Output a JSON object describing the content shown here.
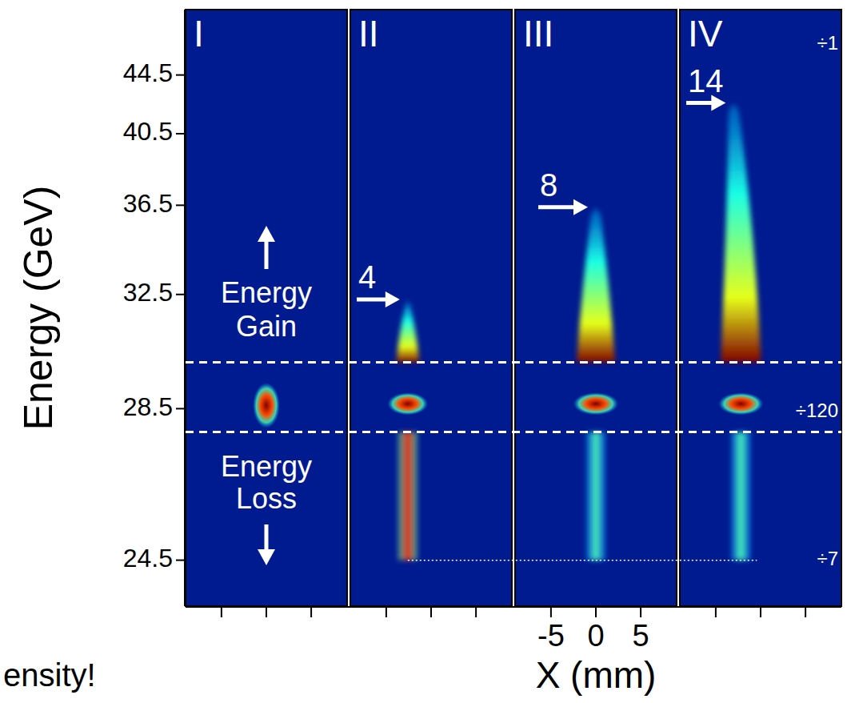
{
  "chart_data": {
    "type": "image",
    "y_label": "Energy (GeV)",
    "x_label": "X (mm)",
    "ylim": [
      23.5,
      50
    ],
    "yticks": [
      24.5,
      28.5,
      32.5,
      36.5,
      40.5,
      44.5
    ],
    "xlim": [
      -9,
      9
    ],
    "xticks": [
      -5,
      0,
      5
    ],
    "x_tick_labels_panel": "III",
    "gain_boundary": 30,
    "loss_boundary": 27.8,
    "gain_label": "Energy Gain",
    "loss_label": "Energy Loss",
    "reference_energy": 24.5,
    "scale_labels": [
      {
        "label": "÷1",
        "energy": 46.9
      },
      {
        "label": "÷120",
        "energy": 28.4
      },
      {
        "label": "÷7",
        "energy": 24.5
      }
    ],
    "panels": [
      {
        "label": "I",
        "beam": {
          "x": 0,
          "width": 3,
          "energy_low": 27.9,
          "energy_high": 29.3,
          "intensity": 1
        }
      },
      {
        "label": "II",
        "beam": {
          "x": -2.6,
          "width": 4.5,
          "energy_low": 28.3,
          "energy_high": 29.0,
          "intensity": 1
        },
        "gain": {
          "max_energy": 32.3,
          "arrow_label": "4",
          "x_bottom": -2.6,
          "x_top": -2.6,
          "width": 2.6,
          "intensity": 1
        },
        "loss": {
          "min_energy": 24.5,
          "x": -2.6,
          "width": 2.2,
          "intensity": 0.85
        }
      },
      {
        "label": "III",
        "beam": {
          "x": 0,
          "width": 5,
          "energy_low": 28.3,
          "energy_high": 29.0,
          "intensity": 1
        },
        "gain": {
          "max_energy": 36.4,
          "arrow_label": "8",
          "x_bottom": 0,
          "x_top": 0,
          "width": 4.3,
          "intensity": 1
        },
        "loss": {
          "min_energy": 24.5,
          "x": 0,
          "width": 2.2,
          "intensity": 0.45
        }
      },
      {
        "label": "IV",
        "beam": {
          "x": -2.2,
          "width": 5,
          "energy_low": 28.3,
          "energy_high": 29.0,
          "intensity": 1
        },
        "gain": {
          "max_energy": 42.5,
          "arrow_label": "14",
          "x_bottom": -2.2,
          "x_top": -3.0,
          "width": 4.5,
          "intensity": 1
        },
        "loss": {
          "min_energy": 24.5,
          "x": -2.2,
          "width": 2.2,
          "intensity": 0.45
        }
      }
    ],
    "caption": "ensity!"
  }
}
